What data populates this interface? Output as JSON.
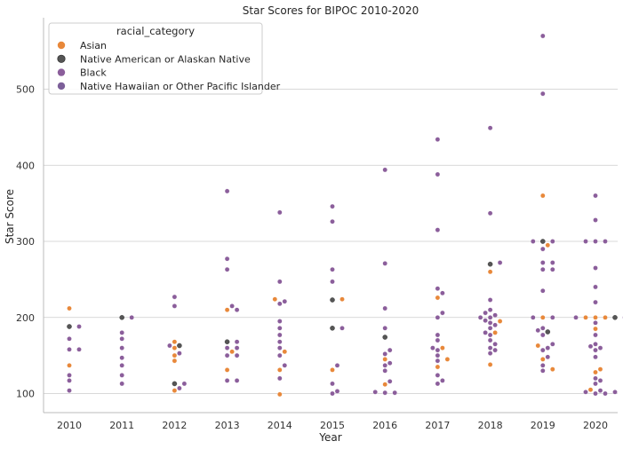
{
  "chart_data": {
    "type": "scatter",
    "title": "Star Scores for BIPOC 2010-2020",
    "xlabel": "Year",
    "ylabel": "Star Score",
    "categories": [
      "2010",
      "2011",
      "2012",
      "2013",
      "2014",
      "2015",
      "2016",
      "2017",
      "2018",
      "2019",
      "2020"
    ],
    "yticks": [
      100,
      200,
      300,
      400,
      500
    ],
    "ylim": [
      80,
      590
    ],
    "grid": "horizontal",
    "legend": {
      "title": "racial_category",
      "position": "top-left",
      "entries": [
        {
          "name": "Asian",
          "color": "#e8883a"
        },
        {
          "name": "Native American or Alaskan Native",
          "color": "#555555"
        },
        {
          "name": "Black",
          "color": "#8b5e9b"
        },
        {
          "name": "Native Hawaiian or Other Pacific Islander",
          "color": "#7c5f99"
        }
      ]
    },
    "series": [
      {
        "name": "Asian",
        "color": "#e8883a",
        "points": [
          [
            "2010",
            212
          ],
          [
            "2010",
            137
          ],
          [
            "2012",
            168
          ],
          [
            "2012",
            160
          ],
          [
            "2012",
            150
          ],
          [
            "2012",
            143
          ],
          [
            "2012",
            104
          ],
          [
            "2013",
            210
          ],
          [
            "2013",
            155
          ],
          [
            "2013",
            131
          ],
          [
            "2014",
            224
          ],
          [
            "2014",
            155
          ],
          [
            "2014",
            131
          ],
          [
            "2014",
            99
          ],
          [
            "2015",
            224
          ],
          [
            "2015",
            131
          ],
          [
            "2016",
            145
          ],
          [
            "2016",
            112
          ],
          [
            "2017",
            226
          ],
          [
            "2017",
            160
          ],
          [
            "2017",
            145
          ],
          [
            "2017",
            135
          ],
          [
            "2018",
            260
          ],
          [
            "2018",
            195
          ],
          [
            "2018",
            180
          ],
          [
            "2018",
            138
          ],
          [
            "2019",
            360
          ],
          [
            "2019",
            295
          ],
          [
            "2019",
            200
          ],
          [
            "2019",
            163
          ],
          [
            "2019",
            145
          ],
          [
            "2019",
            132
          ],
          [
            "2020",
            200
          ],
          [
            "2020",
            200
          ],
          [
            "2020",
            200
          ],
          [
            "2020",
            185
          ],
          [
            "2020",
            132
          ],
          [
            "2020",
            128
          ],
          [
            "2020",
            105
          ]
        ]
      },
      {
        "name": "Native American or Alaskan Native",
        "color": "#555555",
        "points": [
          [
            "2010",
            188
          ],
          [
            "2011",
            200
          ],
          [
            "2012",
            163
          ],
          [
            "2012",
            113
          ],
          [
            "2013",
            168
          ],
          [
            "2015",
            223
          ],
          [
            "2015",
            186
          ],
          [
            "2016",
            174
          ],
          [
            "2018",
            270
          ],
          [
            "2019",
            300
          ],
          [
            "2019",
            181
          ],
          [
            "2020",
            200
          ]
        ]
      },
      {
        "name": "Black",
        "color": "#8b5e9b",
        "points": [
          [
            "2010",
            188
          ],
          [
            "2010",
            172
          ],
          [
            "2010",
            158
          ],
          [
            "2010",
            158
          ],
          [
            "2010",
            124
          ],
          [
            "2010",
            117
          ],
          [
            "2010",
            104
          ],
          [
            "2011",
            200
          ],
          [
            "2011",
            180
          ],
          [
            "2011",
            172
          ],
          [
            "2011",
            160
          ],
          [
            "2011",
            147
          ],
          [
            "2011",
            137
          ],
          [
            "2011",
            124
          ],
          [
            "2011",
            113
          ],
          [
            "2012",
            227
          ],
          [
            "2012",
            215
          ],
          [
            "2012",
            163
          ],
          [
            "2012",
            153
          ],
          [
            "2012",
            113
          ],
          [
            "2012",
            107
          ],
          [
            "2013",
            366
          ],
          [
            "2013",
            277
          ],
          [
            "2013",
            263
          ],
          [
            "2013",
            215
          ],
          [
            "2013",
            210
          ],
          [
            "2013",
            168
          ],
          [
            "2013",
            160
          ],
          [
            "2013",
            160
          ],
          [
            "2013",
            150
          ],
          [
            "2013",
            150
          ],
          [
            "2013",
            117
          ],
          [
            "2013",
            117
          ],
          [
            "2014",
            338
          ],
          [
            "2014",
            247
          ],
          [
            "2014",
            221
          ],
          [
            "2014",
            218
          ],
          [
            "2014",
            195
          ],
          [
            "2014",
            186
          ],
          [
            "2014",
            177
          ],
          [
            "2014",
            168
          ],
          [
            "2014",
            160
          ],
          [
            "2014",
            150
          ],
          [
            "2014",
            137
          ],
          [
            "2014",
            120
          ],
          [
            "2015",
            346
          ],
          [
            "2015",
            326
          ],
          [
            "2015",
            263
          ],
          [
            "2015",
            247
          ],
          [
            "2015",
            186
          ],
          [
            "2015",
            137
          ],
          [
            "2015",
            113
          ],
          [
            "2015",
            103
          ],
          [
            "2015",
            100
          ],
          [
            "2016",
            394
          ],
          [
            "2016",
            271
          ],
          [
            "2016",
            212
          ],
          [
            "2016",
            186
          ],
          [
            "2016",
            157
          ],
          [
            "2016",
            152
          ],
          [
            "2016",
            140
          ],
          [
            "2016",
            137
          ],
          [
            "2016",
            130
          ],
          [
            "2016",
            116
          ],
          [
            "2016",
            102
          ],
          [
            "2016",
            101
          ],
          [
            "2016",
            101
          ],
          [
            "2017",
            434
          ],
          [
            "2017",
            388
          ],
          [
            "2017",
            315
          ],
          [
            "2017",
            238
          ],
          [
            "2017",
            232
          ],
          [
            "2017",
            206
          ],
          [
            "2017",
            200
          ],
          [
            "2017",
            177
          ],
          [
            "2017",
            170
          ],
          [
            "2017",
            160
          ],
          [
            "2017",
            157
          ],
          [
            "2017",
            150
          ],
          [
            "2017",
            143
          ],
          [
            "2017",
            124
          ],
          [
            "2017",
            117
          ],
          [
            "2017",
            113
          ],
          [
            "2018",
            449
          ],
          [
            "2018",
            337
          ],
          [
            "2018",
            272
          ],
          [
            "2018",
            223
          ],
          [
            "2018",
            210
          ],
          [
            "2018",
            206
          ],
          [
            "2018",
            203
          ],
          [
            "2018",
            200
          ],
          [
            "2018",
            200
          ],
          [
            "2018",
            196
          ],
          [
            "2018",
            193
          ],
          [
            "2018",
            190
          ],
          [
            "2018",
            186
          ],
          [
            "2018",
            180
          ],
          [
            "2018",
            177
          ],
          [
            "2018",
            170
          ],
          [
            "2018",
            165
          ],
          [
            "2018",
            160
          ],
          [
            "2018",
            157
          ],
          [
            "2018",
            153
          ],
          [
            "2019",
            570
          ],
          [
            "2019",
            494
          ],
          [
            "2019",
            300
          ],
          [
            "2019",
            300
          ],
          [
            "2019",
            290
          ],
          [
            "2019",
            272
          ],
          [
            "2019",
            272
          ],
          [
            "2019",
            263
          ],
          [
            "2019",
            263
          ],
          [
            "2019",
            235
          ],
          [
            "2019",
            200
          ],
          [
            "2019",
            200
          ],
          [
            "2019",
            186
          ],
          [
            "2019",
            183
          ],
          [
            "2019",
            177
          ],
          [
            "2019",
            165
          ],
          [
            "2019",
            160
          ],
          [
            "2019",
            157
          ],
          [
            "2019",
            148
          ],
          [
            "2019",
            137
          ],
          [
            "2019",
            130
          ],
          [
            "2020",
            360
          ],
          [
            "2020",
            328
          ],
          [
            "2020",
            300
          ],
          [
            "2020",
            300
          ],
          [
            "2020",
            300
          ],
          [
            "2020",
            265
          ],
          [
            "2020",
            240
          ],
          [
            "2020",
            220
          ],
          [
            "2020",
            200
          ],
          [
            "2020",
            200
          ],
          [
            "2020",
            193
          ],
          [
            "2020",
            177
          ],
          [
            "2020",
            165
          ],
          [
            "2020",
            162
          ],
          [
            "2020",
            160
          ],
          [
            "2020",
            157
          ],
          [
            "2020",
            148
          ],
          [
            "2020",
            120
          ],
          [
            "2020",
            117
          ],
          [
            "2020",
            113
          ],
          [
            "2020",
            104
          ],
          [
            "2020",
            102
          ],
          [
            "2020",
            102
          ],
          [
            "2020",
            100
          ],
          [
            "2020",
            100
          ]
        ]
      }
    ]
  }
}
